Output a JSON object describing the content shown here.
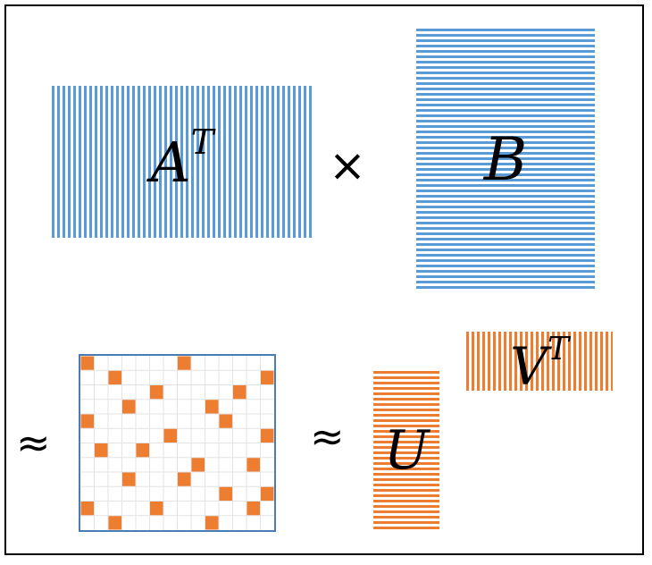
{
  "colors": {
    "blue": "#5b9bd5",
    "orange": "#ed7d31",
    "grid": "#e3e3e3",
    "sparse_border": "#4a7db3"
  },
  "matrices": {
    "a_transpose": {
      "base": "A",
      "sup": "T"
    },
    "b": {
      "base": "B"
    },
    "u": {
      "base": "U"
    },
    "v_transpose": {
      "base": "V",
      "sup": "T"
    }
  },
  "operators": {
    "times": "×",
    "approx_left": "≈",
    "approx_mid": "≈"
  },
  "sparse_matrix": {
    "rows": 12,
    "cols": 14,
    "filled": [
      [
        0,
        0
      ],
      [
        0,
        7
      ],
      [
        1,
        2
      ],
      [
        1,
        13
      ],
      [
        2,
        5
      ],
      [
        2,
        11
      ],
      [
        3,
        3
      ],
      [
        3,
        9
      ],
      [
        4,
        0
      ],
      [
        4,
        10
      ],
      [
        5,
        6
      ],
      [
        5,
        13
      ],
      [
        6,
        1
      ],
      [
        6,
        4
      ],
      [
        7,
        8
      ],
      [
        7,
        12
      ],
      [
        8,
        3
      ],
      [
        8,
        7
      ],
      [
        9,
        10
      ],
      [
        9,
        13
      ],
      [
        10,
        0
      ],
      [
        10,
        5
      ],
      [
        10,
        12
      ],
      [
        11,
        2
      ],
      [
        11,
        9
      ]
    ]
  }
}
